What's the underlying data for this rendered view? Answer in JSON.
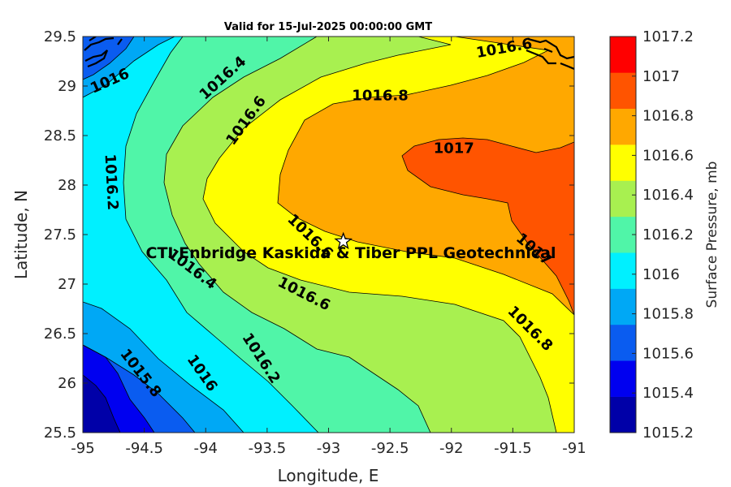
{
  "chart_data": {
    "type": "contour",
    "title": "Valid for 15-Jul-2025 00:00:00 GMT",
    "xlabel": "Longitude, E",
    "ylabel": "Latitude, N",
    "xlim": [
      -95,
      -91
    ],
    "ylim": [
      25.5,
      29.5
    ],
    "xticks": [
      "-95",
      "-94.5",
      "-94",
      "-93.5",
      "-93",
      "-92.5",
      "-92",
      "-91.5",
      "-91"
    ],
    "yticks": [
      "25.5",
      "26",
      "26.5",
      "27",
      "27.5",
      "28",
      "28.5",
      "29",
      "29.5"
    ],
    "colorbar": {
      "label": "Surface Pressure, mb",
      "range": [
        1015.2,
        1017.2
      ],
      "ticks": [
        "1015.2",
        "1015.4",
        "1015.6",
        "1015.8",
        "1016",
        "1016.2",
        "1016.4",
        "1016.6",
        "1016.8",
        "1017",
        "1017.2"
      ],
      "colors": [
        "#0000a8",
        "#0000f0",
        "#0a5cf0",
        "#00a8f5",
        "#00f0ff",
        "#50f5a8",
        "#a8f050",
        "#ffff00",
        "#ffa800",
        "#ff5400",
        "#ff0000"
      ]
    },
    "contour_labels": [
      {
        "text": "1016",
        "lon": -94.78,
        "lat": 29.05,
        "angle": -24
      },
      {
        "text": "1016.4",
        "lon": -93.86,
        "lat": 29.08,
        "angle": -42
      },
      {
        "text": "1016.6",
        "lon": -91.57,
        "lat": 29.38,
        "angle": -10
      },
      {
        "text": "1016.8",
        "lon": -92.58,
        "lat": 28.9,
        "angle": 0
      },
      {
        "text": "1016.6",
        "lon": -93.67,
        "lat": 28.65,
        "angle": -54
      },
      {
        "text": "1017",
        "lon": -91.98,
        "lat": 28.37,
        "angle": 0
      },
      {
        "text": "1016.2",
        "lon": -94.77,
        "lat": 28.03,
        "angle": 87
      },
      {
        "text": "1016.6",
        "lon": -93.15,
        "lat": 27.48,
        "angle": 44
      },
      {
        "text": "1017",
        "lon": -91.33,
        "lat": 27.35,
        "angle": 40
      },
      {
        "text": "1016.4",
        "lon": -94.11,
        "lat": 27.15,
        "angle": 37
      },
      {
        "text": "1016.6",
        "lon": -93.2,
        "lat": 26.9,
        "angle": 27
      },
      {
        "text": "1016.8",
        "lon": -91.36,
        "lat": 26.55,
        "angle": 45
      },
      {
        "text": "1016.2",
        "lon": -93.55,
        "lat": 26.25,
        "angle": 57
      },
      {
        "text": "1016",
        "lon": -94.03,
        "lat": 26.1,
        "angle": 55
      },
      {
        "text": "1015.8",
        "lon": -94.53,
        "lat": 26.1,
        "angle": 52
      }
    ],
    "site": {
      "name": "CTI Enbridge  Kaskida & Tiber PPL Geotechnical",
      "lon": -92.88,
      "lat": 27.43
    }
  }
}
